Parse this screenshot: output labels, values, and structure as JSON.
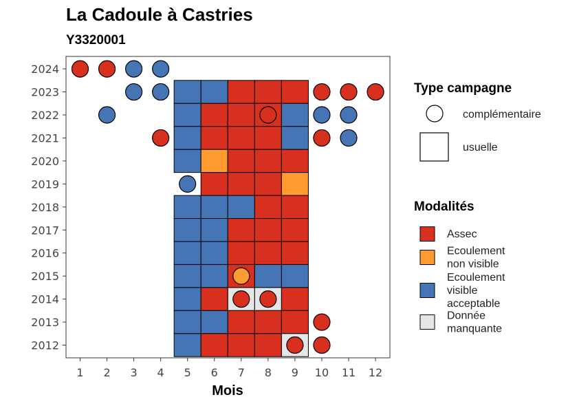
{
  "chart_data": {
    "type": "heatmap",
    "title": "La Cadoule à Castries",
    "subtitle": "Y3320001",
    "xlabel": "Mois",
    "ylabel": "",
    "x_ticks": [
      1,
      2,
      3,
      4,
      5,
      6,
      7,
      8,
      9,
      10,
      11,
      12
    ],
    "y_ticks": [
      2024,
      2023,
      2022,
      2021,
      2020,
      2019,
      2018,
      2017,
      2016,
      2015,
      2014,
      2013,
      2012
    ],
    "grid": false,
    "legend_position": "right",
    "colors": {
      "Assec": "#d7301f",
      "Ecoulement non visible": "#fd9b30",
      "Ecoulement visible acceptable": "#4575b4",
      "Donnée manquante": "#e6e6e6"
    },
    "legend_type": {
      "title": "Type campagne",
      "items": [
        {
          "shape": "circle",
          "label": "complémentaire"
        },
        {
          "shape": "square",
          "label": "usuelle"
        }
      ]
    },
    "legend_modalites": {
      "title": "Modalités",
      "items": [
        {
          "key": "Assec",
          "lines": [
            "Assec"
          ]
        },
        {
          "key": "Ecoulement non visible",
          "lines": [
            "Ecoulement",
            "non visible"
          ]
        },
        {
          "key": "Ecoulement visible acceptable",
          "lines": [
            "Ecoulement",
            "visible",
            "acceptable"
          ]
        },
        {
          "key": "Donnée manquante",
          "lines": [
            "Donnée",
            "manquante"
          ]
        }
      ]
    },
    "usuelle": [
      {
        "year": 2023,
        "month": 5,
        "value": "Ecoulement visible acceptable"
      },
      {
        "year": 2023,
        "month": 6,
        "value": "Ecoulement visible acceptable"
      },
      {
        "year": 2023,
        "month": 7,
        "value": "Assec"
      },
      {
        "year": 2023,
        "month": 8,
        "value": "Assec"
      },
      {
        "year": 2023,
        "month": 9,
        "value": "Assec"
      },
      {
        "year": 2022,
        "month": 5,
        "value": "Ecoulement visible acceptable"
      },
      {
        "year": 2022,
        "month": 6,
        "value": "Assec"
      },
      {
        "year": 2022,
        "month": 7,
        "value": "Assec"
      },
      {
        "year": 2022,
        "month": 8,
        "value": "Assec"
      },
      {
        "year": 2022,
        "month": 9,
        "value": "Ecoulement visible acceptable"
      },
      {
        "year": 2021,
        "month": 5,
        "value": "Ecoulement visible acceptable"
      },
      {
        "year": 2021,
        "month": 6,
        "value": "Assec"
      },
      {
        "year": 2021,
        "month": 7,
        "value": "Assec"
      },
      {
        "year": 2021,
        "month": 8,
        "value": "Assec"
      },
      {
        "year": 2021,
        "month": 9,
        "value": "Ecoulement visible acceptable"
      },
      {
        "year": 2020,
        "month": 5,
        "value": "Ecoulement visible acceptable"
      },
      {
        "year": 2020,
        "month": 6,
        "value": "Ecoulement non visible"
      },
      {
        "year": 2020,
        "month": 7,
        "value": "Assec"
      },
      {
        "year": 2020,
        "month": 8,
        "value": "Assec"
      },
      {
        "year": 2020,
        "month": 9,
        "value": "Assec"
      },
      {
        "year": 2019,
        "month": 6,
        "value": "Assec"
      },
      {
        "year": 2019,
        "month": 7,
        "value": "Assec"
      },
      {
        "year": 2019,
        "month": 8,
        "value": "Assec"
      },
      {
        "year": 2019,
        "month": 9,
        "value": "Ecoulement non visible"
      },
      {
        "year": 2018,
        "month": 5,
        "value": "Ecoulement visible acceptable"
      },
      {
        "year": 2018,
        "month": 6,
        "value": "Ecoulement visible acceptable"
      },
      {
        "year": 2018,
        "month": 7,
        "value": "Ecoulement visible acceptable"
      },
      {
        "year": 2018,
        "month": 8,
        "value": "Assec"
      },
      {
        "year": 2018,
        "month": 9,
        "value": "Assec"
      },
      {
        "year": 2017,
        "month": 5,
        "value": "Ecoulement visible acceptable"
      },
      {
        "year": 2017,
        "month": 6,
        "value": "Ecoulement visible acceptable"
      },
      {
        "year": 2017,
        "month": 7,
        "value": "Assec"
      },
      {
        "year": 2017,
        "month": 8,
        "value": "Assec"
      },
      {
        "year": 2017,
        "month": 9,
        "value": "Assec"
      },
      {
        "year": 2016,
        "month": 5,
        "value": "Ecoulement visible acceptable"
      },
      {
        "year": 2016,
        "month": 6,
        "value": "Ecoulement visible acceptable"
      },
      {
        "year": 2016,
        "month": 7,
        "value": "Assec"
      },
      {
        "year": 2016,
        "month": 8,
        "value": "Assec"
      },
      {
        "year": 2016,
        "month": 9,
        "value": "Assec"
      },
      {
        "year": 2015,
        "month": 5,
        "value": "Ecoulement visible acceptable"
      },
      {
        "year": 2015,
        "month": 6,
        "value": "Ecoulement visible acceptable"
      },
      {
        "year": 2015,
        "month": 7,
        "value": "Assec"
      },
      {
        "year": 2015,
        "month": 8,
        "value": "Ecoulement visible acceptable"
      },
      {
        "year": 2015,
        "month": 9,
        "value": "Ecoulement visible acceptable"
      },
      {
        "year": 2014,
        "month": 5,
        "value": "Ecoulement visible acceptable"
      },
      {
        "year": 2014,
        "month": 6,
        "value": "Assec"
      },
      {
        "year": 2014,
        "month": 7,
        "value": "Donnée manquante"
      },
      {
        "year": 2014,
        "month": 8,
        "value": "Donnée manquante"
      },
      {
        "year": 2014,
        "month": 9,
        "value": "Assec"
      },
      {
        "year": 2013,
        "month": 5,
        "value": "Ecoulement visible acceptable"
      },
      {
        "year": 2013,
        "month": 6,
        "value": "Ecoulement visible acceptable"
      },
      {
        "year": 2013,
        "month": 7,
        "value": "Assec"
      },
      {
        "year": 2013,
        "month": 8,
        "value": "Assec"
      },
      {
        "year": 2013,
        "month": 9,
        "value": "Assec"
      },
      {
        "year": 2012,
        "month": 5,
        "value": "Ecoulement visible acceptable"
      },
      {
        "year": 2012,
        "month": 6,
        "value": "Assec"
      },
      {
        "year": 2012,
        "month": 7,
        "value": "Assec"
      },
      {
        "year": 2012,
        "month": 8,
        "value": "Assec"
      },
      {
        "year": 2012,
        "month": 9,
        "value": "Donnée manquante"
      }
    ],
    "complementaire": [
      {
        "year": 2024,
        "month": 1,
        "value": "Assec"
      },
      {
        "year": 2024,
        "month": 2,
        "value": "Assec"
      },
      {
        "year": 2024,
        "month": 3,
        "value": "Ecoulement visible acceptable"
      },
      {
        "year": 2024,
        "month": 4,
        "value": "Ecoulement visible acceptable"
      },
      {
        "year": 2023,
        "month": 3,
        "value": "Ecoulement visible acceptable"
      },
      {
        "year": 2023,
        "month": 4,
        "value": "Ecoulement visible acceptable"
      },
      {
        "year": 2023,
        "month": 10,
        "value": "Assec"
      },
      {
        "year": 2023,
        "month": 11,
        "value": "Assec"
      },
      {
        "year": 2023,
        "month": 12,
        "value": "Assec"
      },
      {
        "year": 2022,
        "month": 2,
        "value": "Ecoulement visible acceptable"
      },
      {
        "year": 2022,
        "month": 8,
        "value": "Assec"
      },
      {
        "year": 2022,
        "month": 10,
        "value": "Ecoulement visible acceptable"
      },
      {
        "year": 2022,
        "month": 11,
        "value": "Ecoulement visible acceptable"
      },
      {
        "year": 2021,
        "month": 4,
        "value": "Assec"
      },
      {
        "year": 2021,
        "month": 10,
        "value": "Assec"
      },
      {
        "year": 2021,
        "month": 11,
        "value": "Ecoulement visible acceptable"
      },
      {
        "year": 2019,
        "month": 5,
        "value": "Ecoulement visible acceptable"
      },
      {
        "year": 2015,
        "month": 7,
        "value": "Ecoulement non visible"
      },
      {
        "year": 2014,
        "month": 7,
        "value": "Assec"
      },
      {
        "year": 2014,
        "month": 8,
        "value": "Assec"
      },
      {
        "year": 2013,
        "month": 10,
        "value": "Assec"
      },
      {
        "year": 2012,
        "month": 9,
        "value": "Assec"
      },
      {
        "year": 2012,
        "month": 10,
        "value": "Assec"
      }
    ]
  }
}
